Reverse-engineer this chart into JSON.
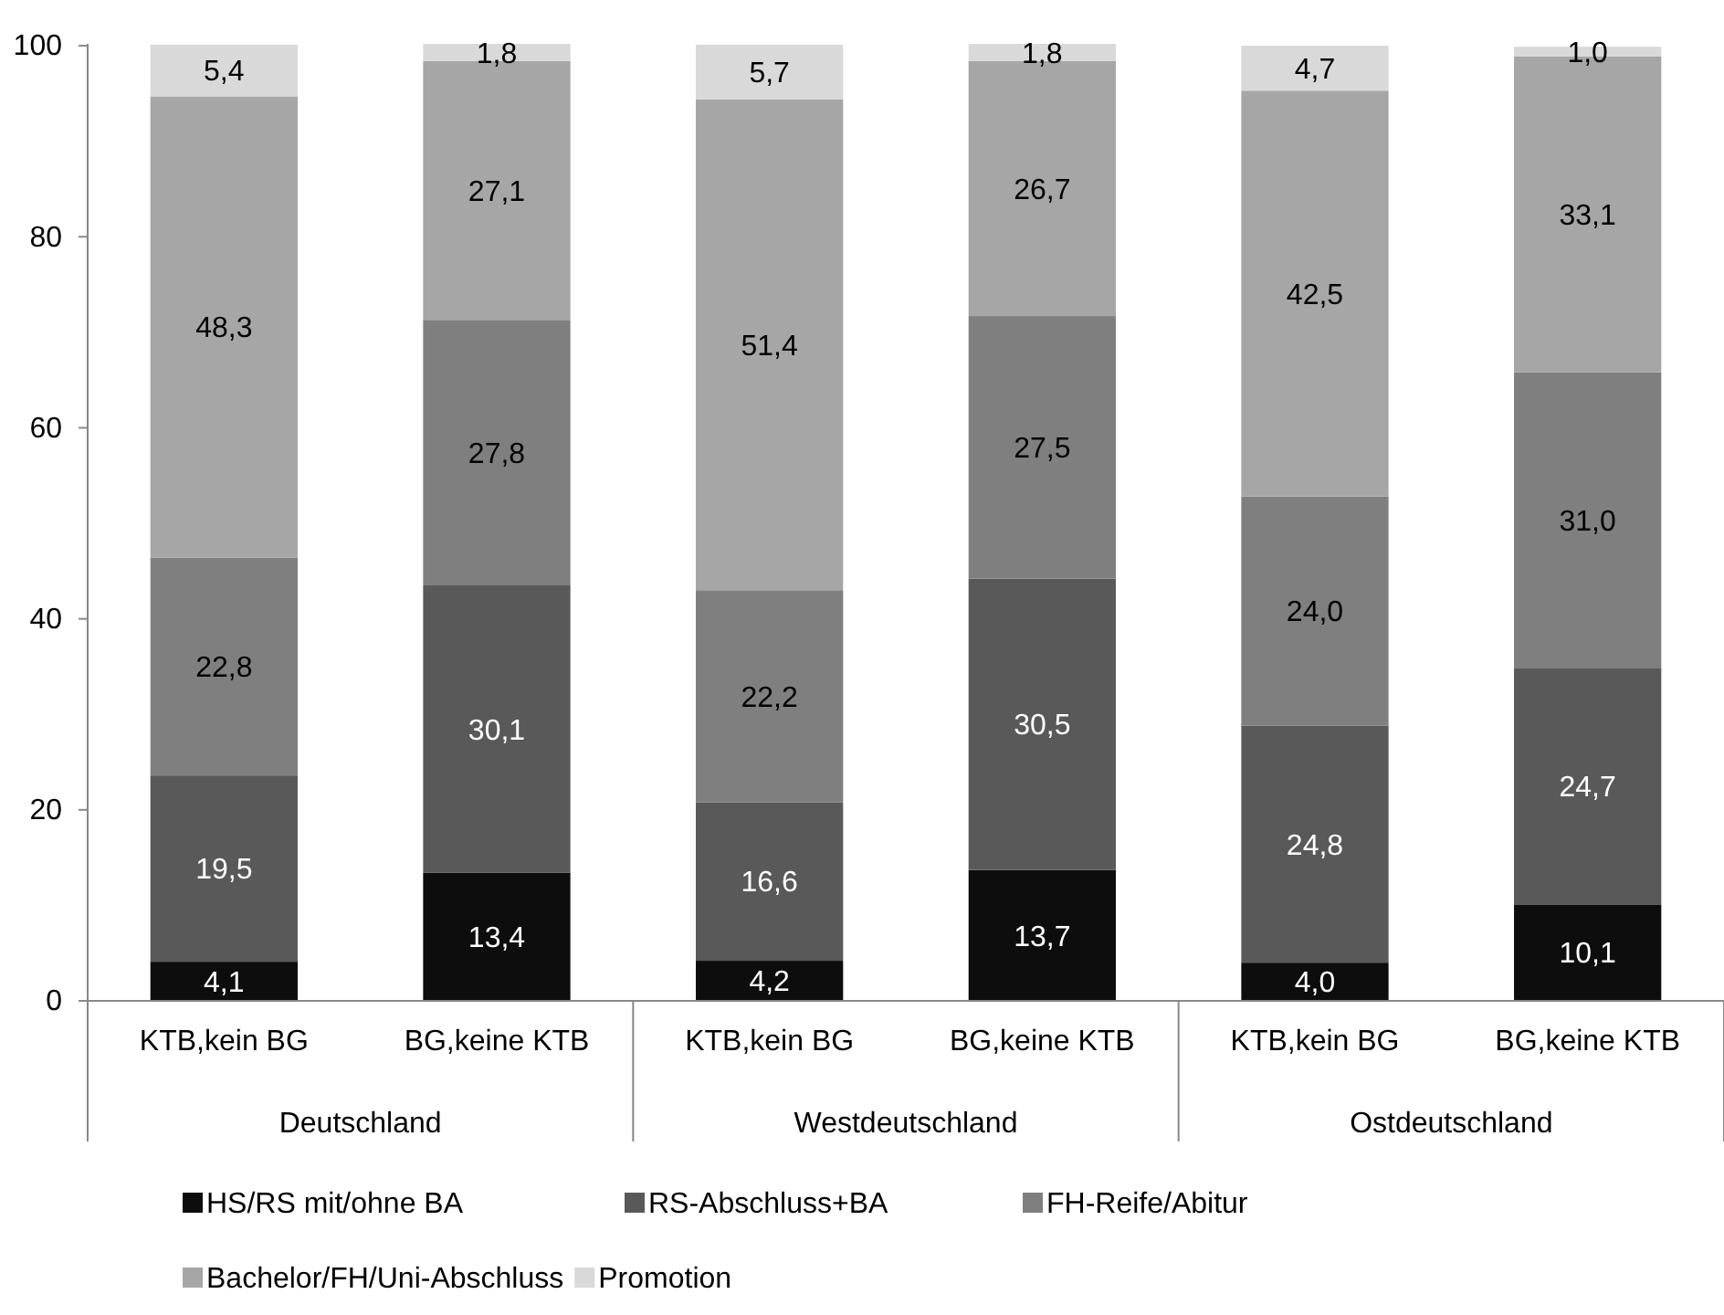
{
  "chart_data": {
    "type": "bar",
    "stacked": true,
    "categories": [
      "KTB,kein BG",
      "BG,keine KTB",
      "KTB,kein BG",
      "BG,keine KTB",
      "KTB,kein BG",
      "BG,keine KTB"
    ],
    "annotations": [
      "Deutschland",
      "Westdeutschland",
      "Ostdeutschland"
    ],
    "series": [
      {
        "name": "HS/RS mit/ohne BA",
        "color": "#0d0d0d",
        "values": [
          4.1,
          13.4,
          4.2,
          13.7,
          4.0,
          10.1
        ],
        "value_labels": [
          "4,1",
          "13,4",
          "4,2",
          "13,7",
          "4,0",
          "10,1"
        ]
      },
      {
        "name": "RS-Abschluss+BA",
        "color": "#595959",
        "values": [
          19.5,
          30.1,
          16.6,
          30.5,
          24.8,
          24.7
        ],
        "value_labels": [
          "19,5",
          "30,1",
          "16,6",
          "30,5",
          "24,8",
          "24,7"
        ]
      },
      {
        "name": "FH-Reife/Abitur",
        "color": "#7f7f7f",
        "values": [
          22.8,
          27.8,
          22.2,
          27.5,
          24.0,
          31.0
        ],
        "value_labels": [
          "22,8",
          "27,8",
          "22,2",
          "27,5",
          "24,0",
          "31,0"
        ]
      },
      {
        "name": "Bachelor/FH/Uni-Abschluss",
        "color": "#a6a6a6",
        "values": [
          48.3,
          27.1,
          51.4,
          26.7,
          42.5,
          33.1
        ],
        "value_labels": [
          "48,3",
          "27,1",
          "51,4",
          "26,7",
          "42,5",
          "33,1"
        ]
      },
      {
        "name": "Promotion",
        "color": "#d9d9d9",
        "values": [
          5.4,
          1.8,
          5.7,
          1.8,
          4.7,
          1.0
        ],
        "value_labels": [
          "5,4",
          "1,8",
          "5,7",
          "1,8",
          "4,7",
          "1,0"
        ]
      }
    ],
    "ylim": [
      0,
      100.2
    ],
    "yticks": [
      0,
      20,
      40,
      60,
      80,
      100
    ],
    "grid": false,
    "legend": "bottom"
  }
}
